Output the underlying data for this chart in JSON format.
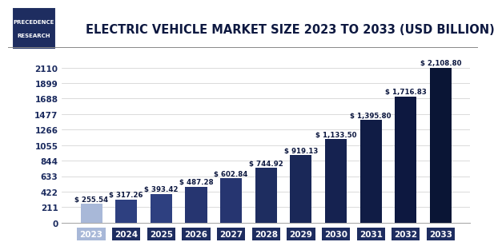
{
  "title": "ELECTRIC VEHICLE MARKET SIZE 2023 TO 2033 (USD BILLION)",
  "years": [
    "2023",
    "2024",
    "2025",
    "2026",
    "2027",
    "2028",
    "2029",
    "2030",
    "2031",
    "2032",
    "2033"
  ],
  "values": [
    255.54,
    317.26,
    393.42,
    487.28,
    602.84,
    744.92,
    919.13,
    1133.5,
    1395.8,
    1716.83,
    2108.8
  ],
  "labels": [
    "$ 255.54",
    "$ 317.26",
    "$ 393.42",
    "$ 487.28",
    "$ 602.84",
    "$ 744.92",
    "$ 919.13",
    "$ 1,133.50",
    "$ 1,395.80",
    "$ 1,716.83",
    "$ 2,108.80"
  ],
  "bar_colors": [
    "#a8b8d8",
    "#2e4080",
    "#2e4080",
    "#263570",
    "#263570",
    "#1e2d60",
    "#1a2858",
    "#152250",
    "#101c45",
    "#0d1840",
    "#0a1535"
  ],
  "xticklabel_bg_2023": "#a8b8d8",
  "xticklabel_bg_rest": "#1e2d60",
  "xticklabel_text_color": "#ffffff",
  "background_color": "#ffffff",
  "plot_bg_color": "#ffffff",
  "yticks": [
    0,
    211,
    422,
    633,
    844,
    1055,
    1266,
    1477,
    1688,
    1899,
    2110
  ],
  "ylim": [
    0,
    2300
  ],
  "grid_color": "#cccccc",
  "title_color": "#0d1840",
  "logo_bg_color": "#1e2d60",
  "logo_border_color": "#ffffff",
  "tick_label_color": "#1a2a5e",
  "bar_label_color": "#0d1840",
  "title_fontsize": 10.5,
  "tick_fontsize": 7.5,
  "label_fontsize": 6.2
}
